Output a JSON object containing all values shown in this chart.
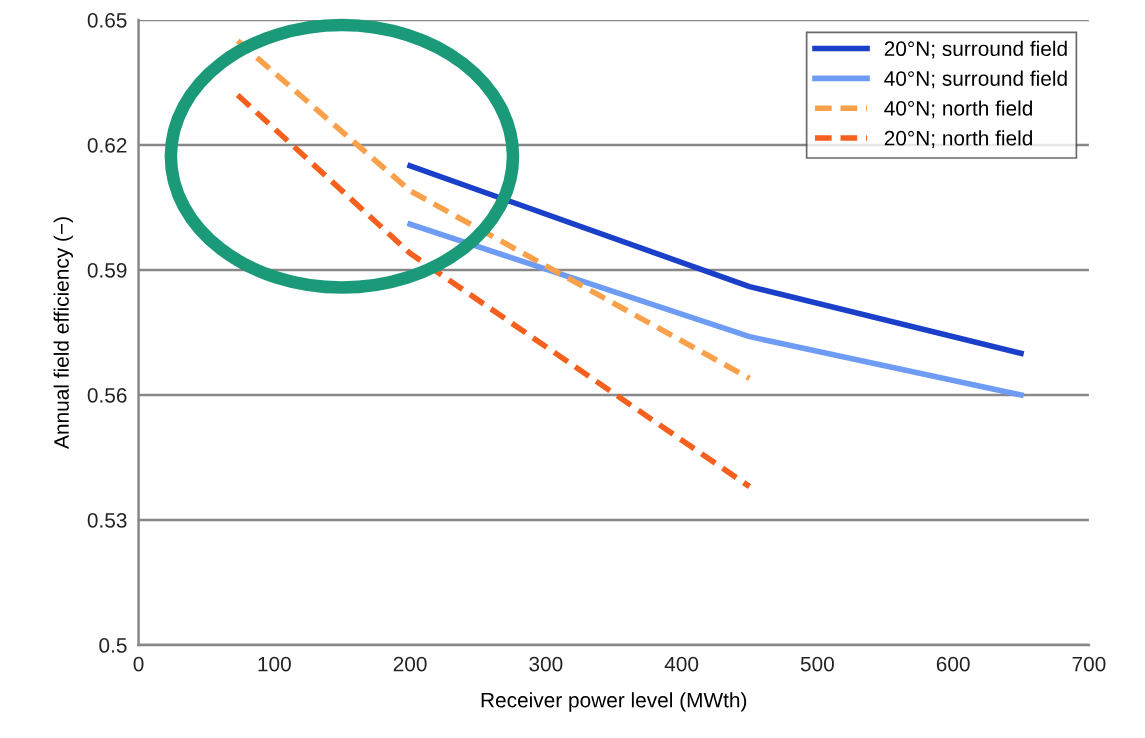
{
  "chart_data": {
    "type": "line",
    "xlabel": "Receiver power level (MWth)",
    "ylabel": "Annual field efficiency (−)",
    "xlim": [
      0,
      700
    ],
    "xticks": [
      0,
      100,
      200,
      300,
      400,
      500,
      600,
      700
    ],
    "ylim": [
      0.5,
      0.65
    ],
    "yticks": [
      0.5,
      0.53,
      0.56,
      0.59,
      0.62,
      0.65
    ],
    "grid": "y",
    "legend": "top right",
    "marker": "none",
    "series": [
      {
        "name": "20°N; surround field",
        "color": "#1a3fc8",
        "line_style": "solid",
        "x": [
          200,
          450,
          650
        ],
        "values": [
          0.615,
          0.586,
          0.57
        ]
      },
      {
        "name": "40°N; surround field",
        "color": "#6e9cf5",
        "line_style": "solid",
        "x": [
          200,
          450,
          650
        ],
        "values": [
          0.601,
          0.574,
          0.56
        ]
      },
      {
        "name": "40°N; north field",
        "color": "#f9a04a",
        "line_style": "dashed",
        "x": [
          73,
          200,
          450
        ],
        "values": [
          0.645,
          0.609,
          0.564
        ]
      },
      {
        "name": "20°N; north field",
        "color": "#f5601e",
        "line_style": "dashed",
        "x": [
          73,
          200,
          450
        ],
        "values": [
          0.632,
          0.594,
          0.538
        ]
      }
    ]
  }
}
